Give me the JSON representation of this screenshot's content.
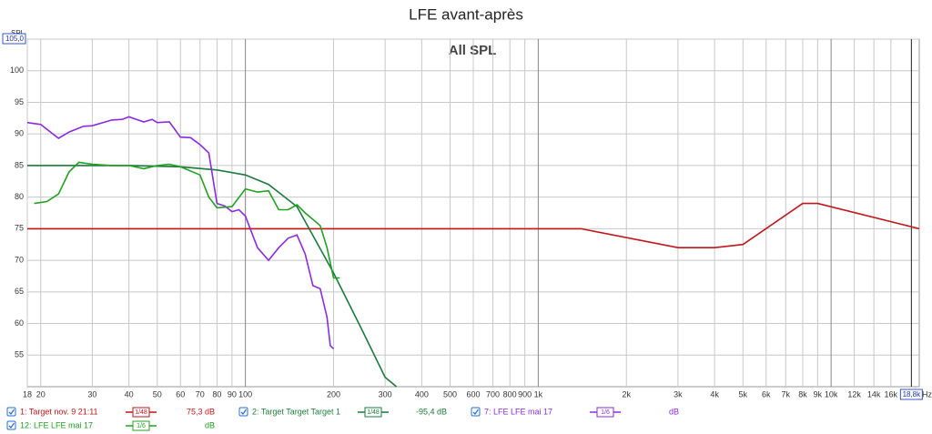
{
  "chart_data": {
    "type": "line",
    "title": "LFE avant-après",
    "subtitle": "All SPL",
    "y_label": "SPL",
    "x_unit": "Hz",
    "log_x": true,
    "grid": true,
    "xlim": [
      18,
      20000
    ],
    "ylim": [
      50,
      105
    ],
    "xticks": [
      18,
      20,
      30,
      40,
      50,
      60,
      70,
      80,
      90,
      100,
      200,
      300,
      400,
      500,
      600,
      700,
      800,
      900,
      {
        "value": 1000,
        "label": "1k"
      },
      {
        "value": 2000,
        "label": "2k"
      },
      {
        "value": 3000,
        "label": "3k"
      },
      {
        "value": 4000,
        "label": "4k"
      },
      {
        "value": 5000,
        "label": "5k"
      },
      {
        "value": 6000,
        "label": "6k"
      },
      {
        "value": 7000,
        "label": "7k"
      },
      {
        "value": 8000,
        "label": "8k"
      },
      {
        "value": 9000,
        "label": "9k"
      },
      {
        "value": 10000,
        "label": "10k"
      },
      {
        "value": 12000,
        "label": "12k"
      },
      {
        "value": 14000,
        "label": "14k"
      },
      {
        "value": 16000,
        "label": "16k"
      },
      {
        "value": 18800,
        "label": "18,8k"
      }
    ],
    "yticks": [
      55,
      60,
      65,
      70,
      75,
      80,
      85,
      90,
      95,
      100,
      {
        "value": 105,
        "label": "105,0"
      }
    ],
    "series": [
      {
        "name": "1: Target nov. 9 21:11",
        "color": "#c0161b",
        "smoothing": "1/48",
        "level": "75,3 dB",
        "x": [
          18,
          1400,
          3000,
          4000,
          5000,
          8000,
          9000,
          20000
        ],
        "values": [
          75,
          75,
          72,
          72,
          72.5,
          79,
          79,
          75
        ]
      },
      {
        "name": "2: Target Target Target 1",
        "color": "#1b7a3c",
        "smoothing": "1/48",
        "level": "-95,4 dB",
        "x": [
          18,
          40,
          60,
          80,
          100,
          120,
          150,
          200,
          250,
          300,
          328
        ],
        "values": [
          85,
          85,
          84.8,
          84.3,
          83.5,
          82,
          78.5,
          68,
          59,
          51.5,
          50
        ]
      },
      {
        "name": "7: LFE LFE mai 17",
        "color": "#8a2be2",
        "smoothing": "1/6",
        "level": "dB",
        "x": [
          18,
          20,
          23,
          25,
          28,
          30,
          35,
          38,
          40,
          45,
          48,
          50,
          55,
          60,
          65,
          70,
          75,
          80,
          85,
          90,
          95,
          100,
          110,
          120,
          130,
          140,
          150,
          160,
          170,
          180,
          190,
          195,
          200
        ],
        "values": [
          91.8,
          91.5,
          89.3,
          90.3,
          91.2,
          91.3,
          92.2,
          92.3,
          92.7,
          91.9,
          92.3,
          91.8,
          91.9,
          89.5,
          89.4,
          88.3,
          87,
          79,
          78.6,
          77.7,
          78,
          77,
          72,
          70,
          72,
          73.5,
          74,
          71,
          66,
          65.5,
          61,
          56.5,
          56
        ]
      },
      {
        "name": "12: LFE LFE mai 17",
        "color": "#22a022",
        "smoothing": "1/6",
        "level": "dB",
        "x": [
          19,
          21,
          23,
          25,
          27,
          30,
          35,
          40,
          45,
          50,
          55,
          60,
          70,
          75,
          80,
          90,
          100,
          110,
          120,
          130,
          140,
          150,
          160,
          180,
          190,
          200,
          210
        ],
        "values": [
          79,
          79.3,
          80.5,
          84,
          85.5,
          85.2,
          85,
          85,
          84.5,
          85,
          85.2,
          84.8,
          83.5,
          80,
          78.3,
          78.5,
          81.3,
          80.8,
          81,
          78,
          78,
          78.8,
          77.5,
          75.5,
          72,
          67.2,
          67.2
        ]
      }
    ]
  }
}
